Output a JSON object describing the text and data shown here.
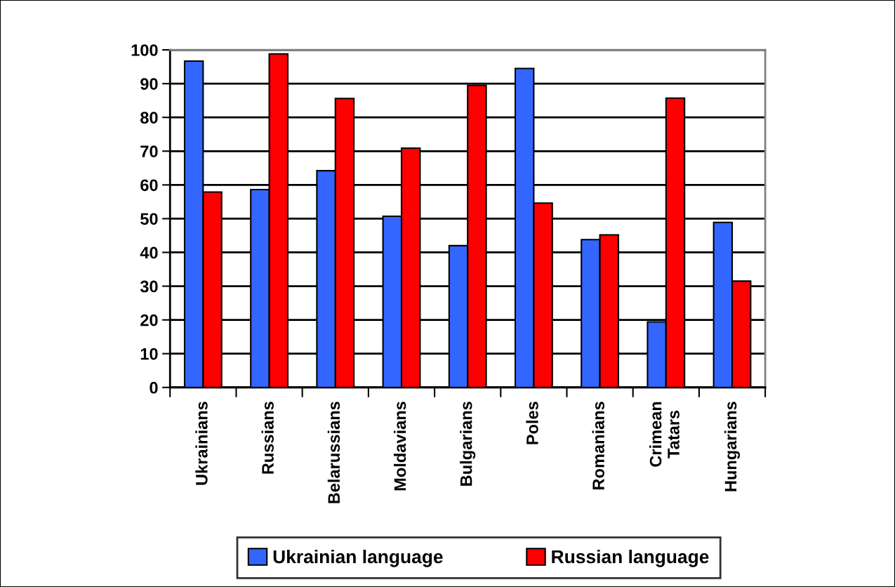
{
  "chart_data": {
    "type": "bar",
    "categories": [
      "Ukrainians",
      "Russians",
      "Belarussians",
      "Moldavians",
      "Bulgarians",
      "Poles",
      "Romanians",
      "Crimean Tatars",
      "Hungarians"
    ],
    "series": [
      {
        "name": "Ukrainian language",
        "color": "#3366ff",
        "values": [
          96.7,
          58.6,
          64.2,
          50.7,
          42.0,
          94.5,
          43.8,
          19.4,
          48.9
        ]
      },
      {
        "name": "Russian language",
        "color": "#ff0000",
        "values": [
          57.9,
          98.8,
          85.6,
          70.9,
          89.5,
          54.6,
          45.2,
          85.7,
          31.5
        ]
      }
    ],
    "ylim": [
      0,
      100
    ],
    "yticks": [
      0,
      10,
      20,
      30,
      40,
      50,
      60,
      70,
      80,
      90,
      100
    ],
    "grid": "y",
    "legend": "bottom"
  }
}
